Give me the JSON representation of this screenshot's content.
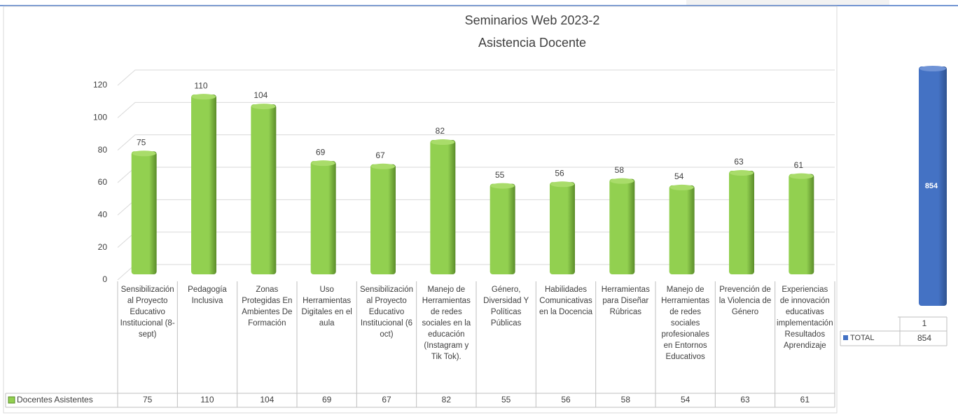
{
  "chart_data": [
    {
      "type": "bar",
      "title": "Seminarios Web 2023-2",
      "subtitle": "Asistencia Docente",
      "categories": [
        "Sensibilización al Proyecto Educativo Institucional (8-sept)",
        "Pedagogía Inclusiva",
        "Zonas Protegidas En Ambientes De Formación",
        "Uso Herramientas Digitales en el aula",
        "Sensibilización al Proyecto Educativo Institucional (6 oct)",
        "Manejo de Herramientas de redes sociales en la educación (Instagram y Tik Tok).",
        "Género, Diversidad Y Políticas Públicas",
        "Habilidades Comunicativas en la Docencia",
        "Herramientas para Diseñar Rúbricas",
        "Manejo de Herramientas de redes sociales profesionales en Entornos Educativos",
        "Prevención de la Violencia de Género",
        "Experiencias de innovación educativas implementación Resultados Aprendizaje"
      ],
      "series": [
        {
          "name": "Docentes Asistentes",
          "color": "#92d050",
          "values": [
            75,
            110,
            104,
            69,
            67,
            82,
            55,
            56,
            58,
            54,
            63,
            61
          ]
        }
      ],
      "ylim": [
        0,
        120
      ],
      "yticks": [
        0,
        20,
        40,
        60,
        80,
        100,
        120
      ],
      "grid": true
    },
    {
      "type": "bar",
      "categories": [
        "1"
      ],
      "series": [
        {
          "name": "TOTAL",
          "color": "#4472c4",
          "values": [
            854
          ]
        }
      ]
    }
  ]
}
